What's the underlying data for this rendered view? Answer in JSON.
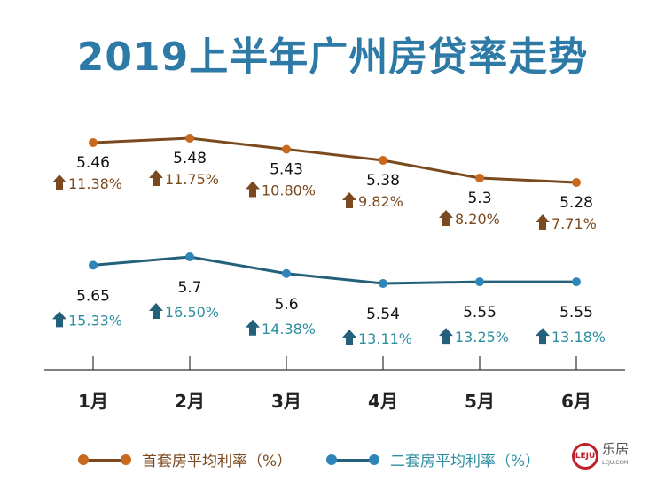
{
  "chart_data": {
    "type": "line",
    "title": "2019上半年广州房贷率走势",
    "categories": [
      "1月",
      "2月",
      "3月",
      "4月",
      "5月",
      "6月"
    ],
    "series": [
      {
        "name": "首套房平均利率（%）",
        "values": [
          5.46,
          5.48,
          5.43,
          5.38,
          5.3,
          5.28
        ],
        "labels": [
          "5.46",
          "5.48",
          "5.43",
          "5.38",
          "5.3",
          "5.28"
        ],
        "changes": [
          "11.38%",
          "11.75%",
          "10.80%",
          "9.82%",
          "8.20%",
          "7.71%"
        ],
        "color": "#7a4a1e",
        "marker_color": "#c8691e",
        "change_color": "#7a4a1e",
        "arrow": "up-arrow"
      },
      {
        "name": "二套房平均利率（%）",
        "values": [
          5.65,
          5.7,
          5.6,
          5.54,
          5.55,
          5.55
        ],
        "labels": [
          "5.65",
          "5.7",
          "5.6",
          "5.54",
          "5.55",
          "5.55"
        ],
        "changes": [
          "15.33%",
          "16.50%",
          "14.38%",
          "13.11%",
          "13.25%",
          "13.18%"
        ],
        "color": "#24607a",
        "marker_color": "#2e86b8",
        "change_color": "#2e8fa0",
        "arrow": "up-arrow"
      }
    ],
    "legend": "bottom",
    "grid": false
  },
  "logo": {
    "name": "LEJU",
    "cn": "乐居",
    "sub": "LEJU.COM"
  }
}
